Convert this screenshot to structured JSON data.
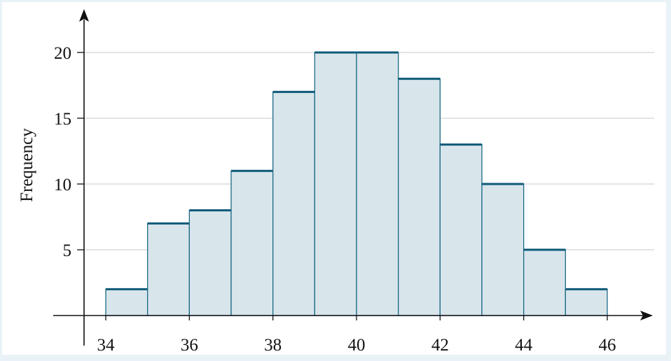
{
  "chart_data": {
    "type": "bar",
    "title": "",
    "xlabel": "",
    "ylabel": "Frequency",
    "bin_edges": [
      34,
      35,
      36,
      37,
      38,
      39,
      40,
      41,
      42,
      43,
      44,
      45,
      46
    ],
    "values": [
      2,
      7,
      8,
      11,
      17,
      20,
      20,
      18,
      13,
      10,
      5,
      2
    ],
    "x_ticks": [
      34,
      36,
      38,
      40,
      42,
      44,
      46
    ],
    "x_tick_labels": [
      "34",
      "36",
      "38",
      "40",
      "42",
      "44",
      "46"
    ],
    "y_ticks": [
      5,
      10,
      15,
      20
    ],
    "y_tick_labels": [
      "5",
      "10",
      "15",
      "20"
    ],
    "xlim": [
      34,
      46
    ],
    "ylim": [
      0,
      20
    ],
    "grid": "horizontal",
    "colors": {
      "bar_fill": "#d8e5eb",
      "bar_stroke": "#1c6a85",
      "bar_top": "#0e5a78",
      "grid": "#c8c8c8",
      "axis": "#111111",
      "background": "#e9f2f6"
    }
  }
}
